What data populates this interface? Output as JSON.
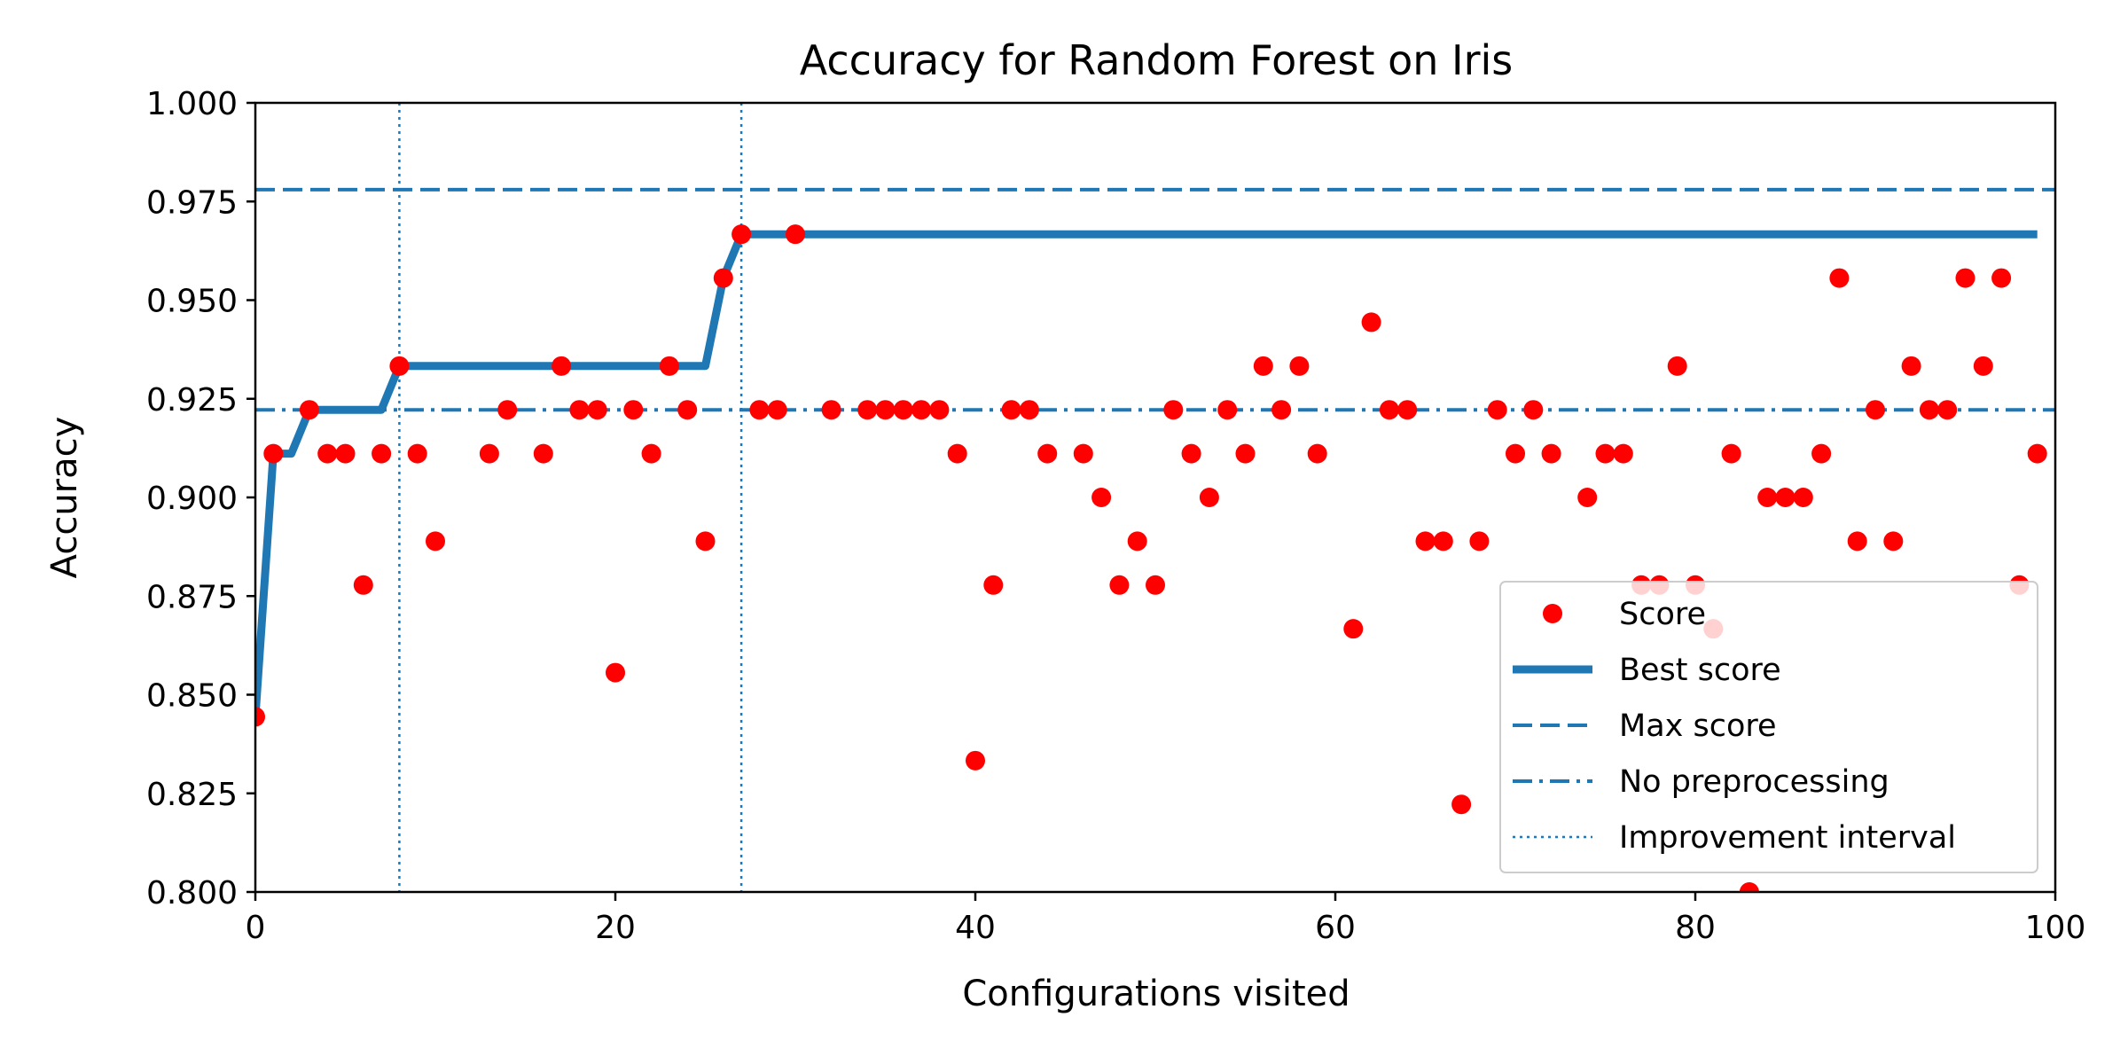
{
  "chart_data": {
    "type": "scatter",
    "title": "Accuracy for Random Forest on Iris",
    "xlabel": "Configurations visited",
    "ylabel": "Accuracy",
    "xlim": [
      0,
      100
    ],
    "ylim": [
      0.8,
      1.0
    ],
    "xticks": [
      0,
      20,
      40,
      60,
      80,
      100
    ],
    "xtick_labels": [
      "0",
      "20",
      "40",
      "60",
      "80",
      "100"
    ],
    "yticks": [
      0.8,
      0.825,
      0.85,
      0.875,
      0.9,
      0.925,
      0.95,
      0.975,
      1.0
    ],
    "ytick_labels": [
      "0.800",
      "0.825",
      "0.850",
      "0.875",
      "0.900",
      "0.925",
      "0.950",
      "0.975",
      "1.000"
    ],
    "legend_position": "lower-right",
    "colors": {
      "score": "#ff0000",
      "line": "#1f77b4"
    },
    "series": [
      {
        "name": "Score",
        "kind": "points",
        "x": [
          0,
          1,
          3,
          4,
          5,
          6,
          7,
          8,
          9,
          10,
          13,
          14,
          16,
          17,
          18,
          19,
          20,
          21,
          22,
          23,
          24,
          25,
          26,
          27,
          28,
          29,
          30,
          32,
          34,
          35,
          36,
          37,
          38,
          39,
          40,
          41,
          42,
          43,
          44,
          46,
          47,
          48,
          49,
          50,
          51,
          52,
          53,
          54,
          55,
          56,
          57,
          58,
          59,
          61,
          62,
          63,
          64,
          65,
          66,
          67,
          68,
          69,
          70,
          71,
          72,
          74,
          75,
          76,
          77,
          78,
          79,
          80,
          81,
          82,
          83,
          84,
          85,
          86,
          87,
          88,
          89,
          90,
          91,
          92,
          93,
          94,
          95,
          96,
          97,
          98,
          99
        ],
        "y": [
          0.8444,
          0.9111,
          0.9222,
          0.9111,
          0.9111,
          0.8778,
          0.9111,
          0.9333,
          0.9111,
          0.8889,
          0.9111,
          0.9222,
          0.9111,
          0.9333,
          0.9222,
          0.9222,
          0.8556,
          0.9222,
          0.9111,
          0.9333,
          0.9222,
          0.8889,
          0.9556,
          0.9667,
          0.9222,
          0.9222,
          0.9667,
          0.9222,
          0.9222,
          0.9222,
          0.9222,
          0.9222,
          0.9222,
          0.9111,
          0.8333,
          0.8778,
          0.9222,
          0.9222,
          0.9111,
          0.9111,
          0.9,
          0.8778,
          0.8889,
          0.8778,
          0.9222,
          0.9111,
          0.9,
          0.9222,
          0.9111,
          0.9333,
          0.9222,
          0.9333,
          0.9111,
          0.8667,
          0.9444,
          0.9222,
          0.9222,
          0.8889,
          0.8889,
          0.8222,
          0.8889,
          0.9222,
          0.9111,
          0.9222,
          0.9111,
          0.9,
          0.9111,
          0.9111,
          0.8778,
          0.8778,
          0.9333,
          0.8778,
          0.8667,
          0.9111,
          0.8,
          0.9,
          0.9,
          0.9,
          0.9111,
          0.9556,
          0.8889,
          0.9222,
          0.8889,
          0.9333,
          0.9222,
          0.9222,
          0.9556,
          0.9333,
          0.9556,
          0.8778,
          0.9111
        ]
      },
      {
        "name": "Best score",
        "kind": "line",
        "x": [
          0,
          1,
          2,
          3,
          4,
          5,
          6,
          7,
          8,
          9,
          10,
          11,
          12,
          13,
          14,
          15,
          16,
          17,
          18,
          19,
          20,
          21,
          22,
          23,
          24,
          25,
          26,
          27,
          28,
          99
        ],
        "y": [
          0.8444,
          0.9111,
          0.9111,
          0.9222,
          0.9222,
          0.9222,
          0.9222,
          0.9222,
          0.9333,
          0.9333,
          0.9333,
          0.9333,
          0.9333,
          0.9333,
          0.9333,
          0.9333,
          0.9333,
          0.9333,
          0.9333,
          0.9333,
          0.9333,
          0.9333,
          0.9333,
          0.9333,
          0.9333,
          0.9333,
          0.9556,
          0.9667,
          0.9667,
          0.9667
        ]
      }
    ],
    "reference_lines": [
      {
        "name": "Max score",
        "orientation": "horizontal",
        "value": 0.978,
        "style": "dashed"
      },
      {
        "name": "No preprocessing",
        "orientation": "horizontal",
        "value": 0.9222,
        "style": "dashdot"
      },
      {
        "name": "Improvement interval",
        "orientation": "vertical",
        "values": [
          8,
          27
        ],
        "style": "dotted"
      }
    ],
    "legend": [
      "Score",
      "Best score",
      "Max score",
      "No preprocessing",
      "Improvement interval"
    ]
  }
}
